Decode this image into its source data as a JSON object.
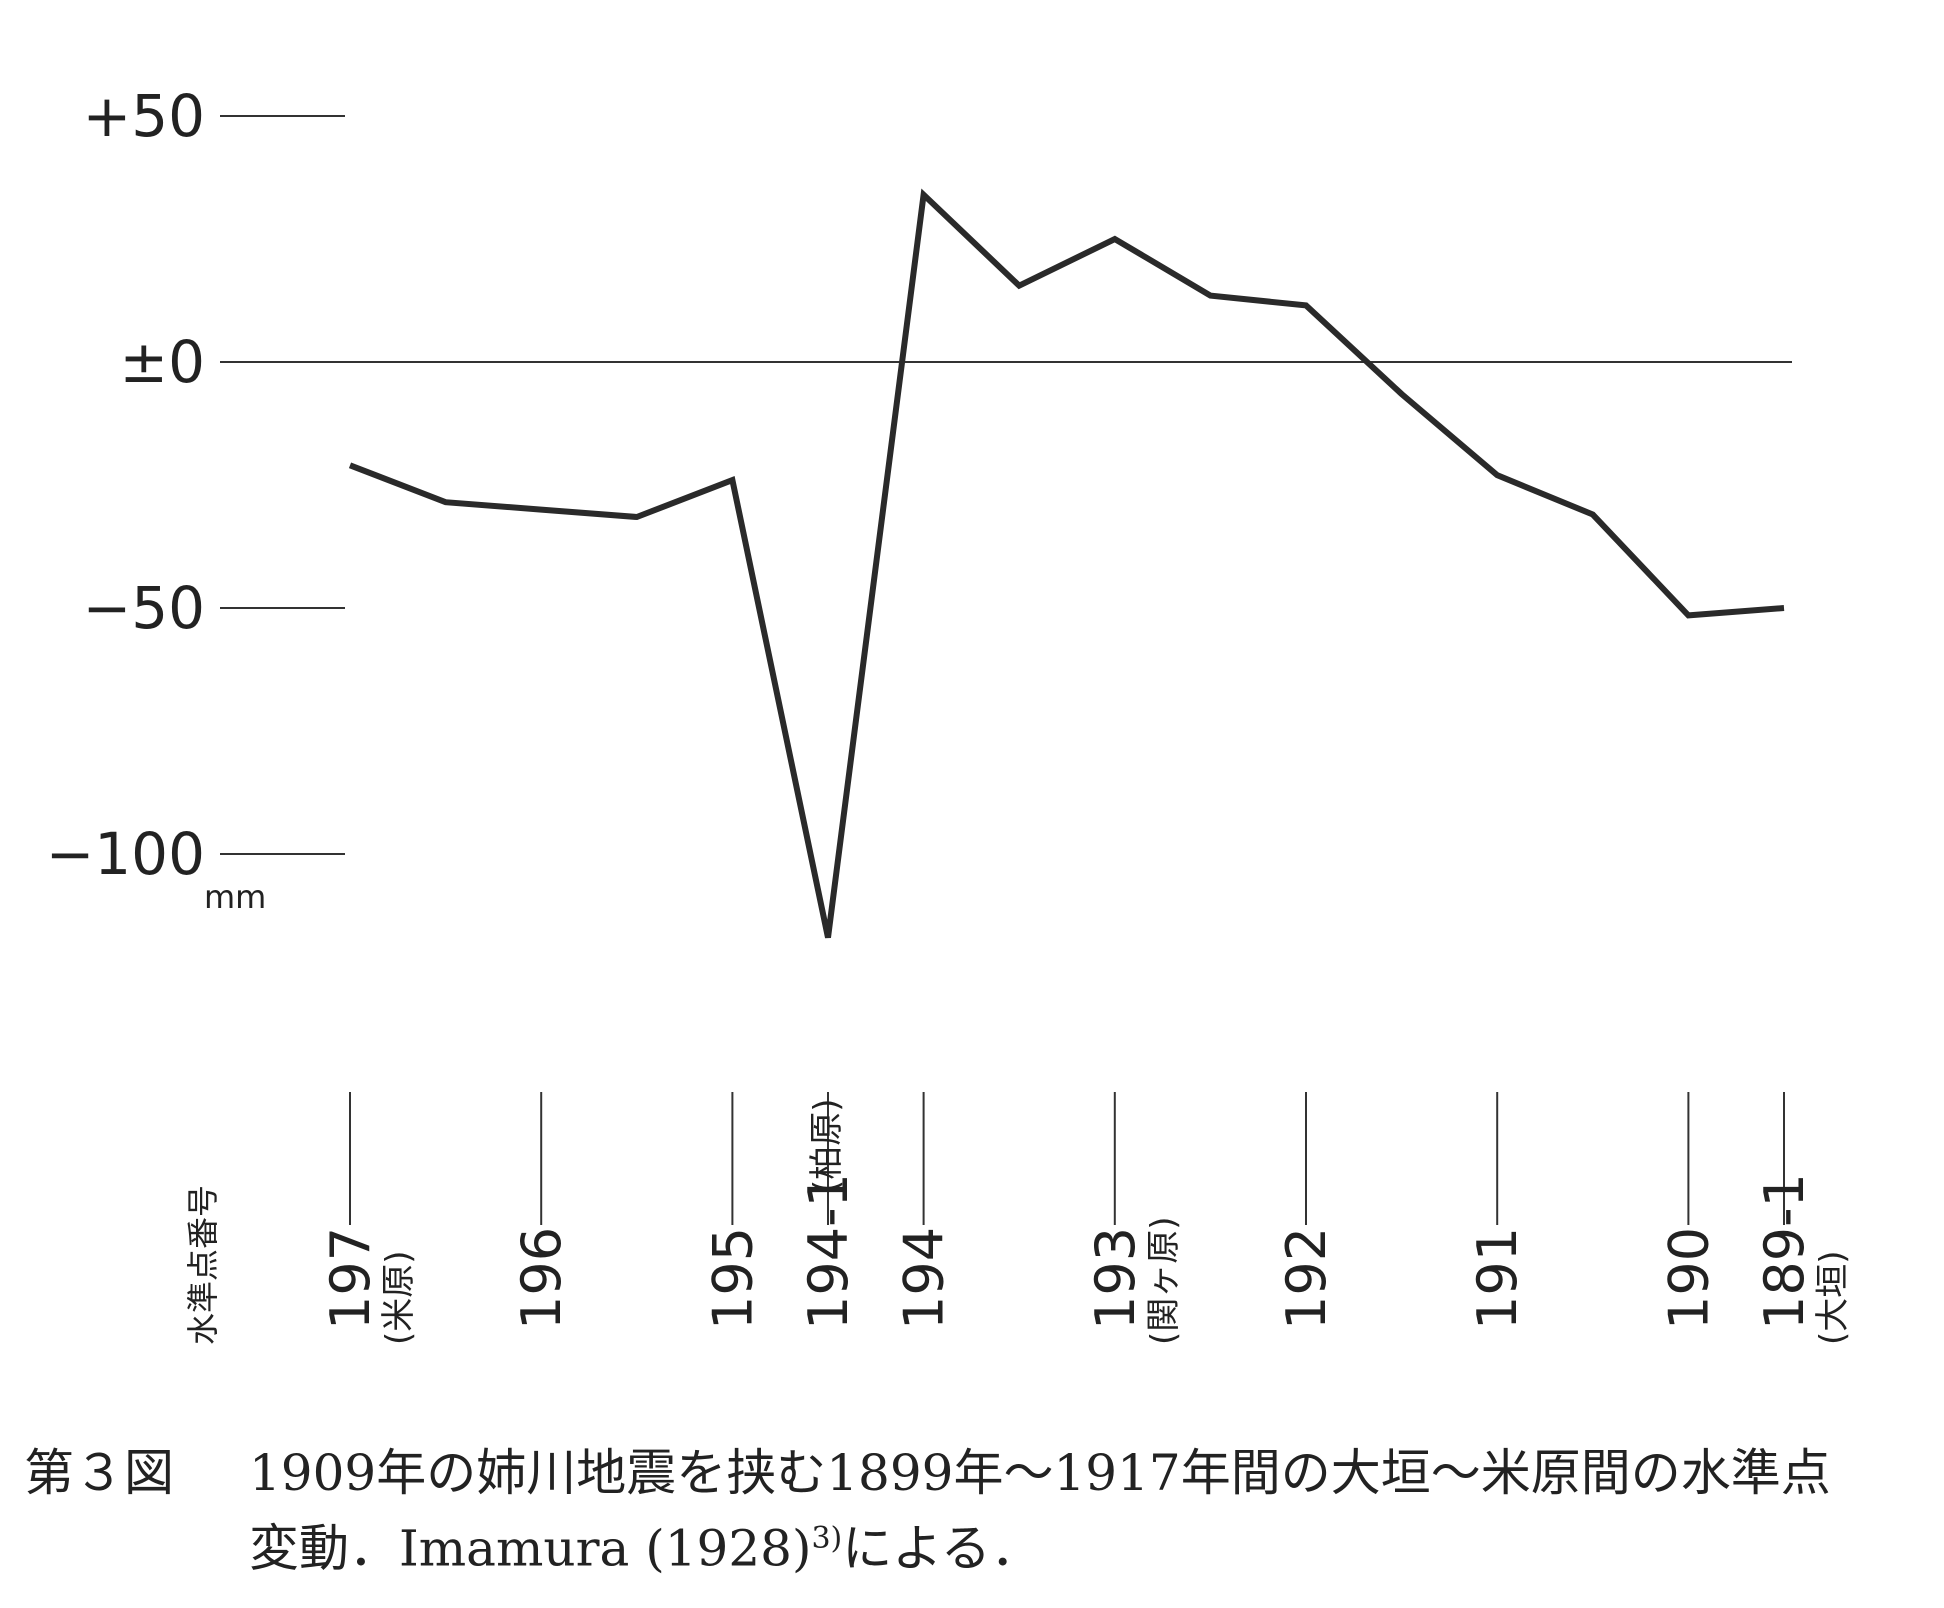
{
  "chart_data": {
    "type": "line",
    "ylabel": "mm",
    "xlabel": "水準点番号",
    "ylim": [
      -120,
      50
    ],
    "yticks": [
      {
        "value": 50,
        "label": "+50"
      },
      {
        "value": 0,
        "label": "±0"
      },
      {
        "value": -50,
        "label": "−50"
      },
      {
        "value": -100,
        "label": "−100"
      }
    ],
    "grid": false,
    "zero_line": true,
    "points": [
      {
        "benchmark": "197",
        "place": "(米原)",
        "value": -21
      },
      {
        "benchmark": "",
        "place": "",
        "value": -28.5
      },
      {
        "benchmark": "196",
        "place": "",
        "value": -30
      },
      {
        "benchmark": "",
        "place": "",
        "value": -31.5
      },
      {
        "benchmark": "195",
        "place": "",
        "value": -24
      },
      {
        "benchmark": "194-1",
        "place": "(柏原)",
        "value": -117
      },
      {
        "benchmark": "194",
        "place": "",
        "value": 34
      },
      {
        "benchmark": "",
        "place": "",
        "value": 15.5
      },
      {
        "benchmark": "193",
        "place": "(関ヶ原)",
        "value": 25
      },
      {
        "benchmark": "",
        "place": "",
        "value": 13.5
      },
      {
        "benchmark": "192",
        "place": "",
        "value": 11.5
      },
      {
        "benchmark": "",
        "place": "",
        "value": -6.5
      },
      {
        "benchmark": "191",
        "place": "",
        "value": -23
      },
      {
        "benchmark": "",
        "place": "",
        "value": -31
      },
      {
        "benchmark": "190",
        "place": "",
        "value": -51.5
      },
      {
        "benchmark": "189-1",
        "place": "(大垣)",
        "value": -50
      }
    ]
  },
  "caption": {
    "figure_number": "第３図",
    "text": "1909年の姉川地震を挟む1899年～1917年間の大垣～米原間の水準点変動．Imamura (1928)",
    "citation": "3)",
    "text_tail": "による．"
  }
}
